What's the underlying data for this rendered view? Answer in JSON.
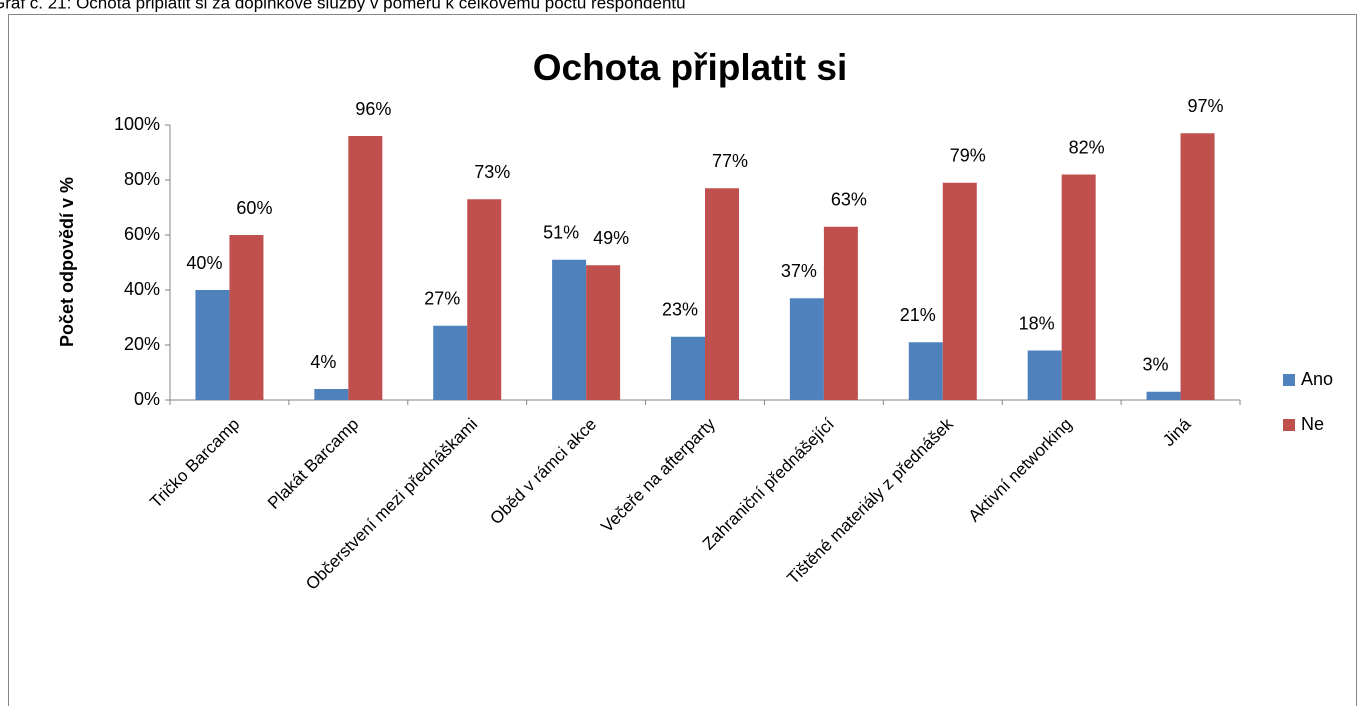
{
  "caption": "Graf č. 21: Ochota připlatit si za doplňkové služby v poměru k celkovému počtu respondentů",
  "chart_data": {
    "type": "bar",
    "title": "Ochota připlatit si",
    "y_label": "Počet odpovědí v %",
    "categories": [
      "Tričko Barcamp",
      "Plakát Barcamp",
      "Občerstvení mezi přednáškami",
      "Oběd v rámci akce",
      "Večeře na afterparty",
      "Zahraniční přednášející",
      "Tištěné materiály z přednášek",
      "Aktivní networking",
      "Jiná"
    ],
    "series": [
      {
        "name": "Ano",
        "color": "#4f81bd",
        "values": [
          40,
          4,
          27,
          51,
          23,
          37,
          21,
          18,
          3
        ],
        "value_labels": [
          "40%",
          "4%",
          "27%",
          "51%",
          "23%",
          "37%",
          "21%",
          "18%",
          "3%"
        ]
      },
      {
        "name": "Ne",
        "color": "#c0504d",
        "values": [
          60,
          96,
          73,
          49,
          77,
          63,
          79,
          82,
          97
        ],
        "value_labels": [
          "60%",
          "96%",
          "73%",
          "49%",
          "77%",
          "63%",
          "79%",
          "82%",
          "97%"
        ]
      }
    ],
    "ylim": [
      0,
      100
    ],
    "yticks": [
      {
        "value": 0,
        "label": "0%"
      },
      {
        "value": 20,
        "label": "20%"
      },
      {
        "value": 40,
        "label": "40%"
      },
      {
        "value": 60,
        "label": "60%"
      },
      {
        "value": 80,
        "label": "80%"
      },
      {
        "value": 100,
        "label": "100%"
      }
    ],
    "legend": "right"
  }
}
